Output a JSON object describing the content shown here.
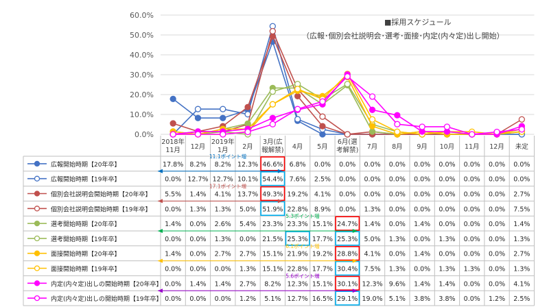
{
  "chart_data": {
    "type": "line",
    "legend": [
      "■採用スケジュール",
      "（広報･個別会社説明会･選考･面接･内定(内々定)出し開始）"
    ],
    "categories": [
      [
        "2018年",
        "11月"
      ],
      [
        "12月"
      ],
      [
        "2019年",
        "1月"
      ],
      [
        "2月"
      ],
      [
        "3月(広",
        "報解禁)"
      ],
      [
        "4月"
      ],
      [
        "5月"
      ],
      [
        "6月(選",
        "考解禁)"
      ],
      [
        "7月"
      ],
      [
        "8月"
      ],
      [
        "9月"
      ],
      [
        "10月"
      ],
      [
        "11月"
      ],
      [
        "12月"
      ],
      [
        "未定"
      ]
    ],
    "ylim": [
      0,
      60
    ],
    "yticks": [
      "0.0%",
      "10.0%",
      "20.0%",
      "30.0%",
      "40.0%",
      "50.0%",
      "60.0%"
    ],
    "series": [
      {
        "name": "広報開始時期【20年卒】",
        "color": "#4472C4",
        "filled": true,
        "values": [
          17.8,
          8.2,
          8.2,
          12.3,
          46.6,
          6.8,
          0.0,
          0.0,
          0.0,
          0.0,
          0.0,
          0.0,
          0.0,
          0.0,
          0.0
        ],
        "labels": [
          "17.8%",
          "8.2%",
          "8.2%",
          "12.3%",
          "46.6%",
          "6.8%",
          "0.0%",
          "0.0%",
          "0.0%",
          "0.0%",
          "0.0%",
          "0.0%",
          "0.0%",
          "0.0%",
          "0.0%"
        ]
      },
      {
        "name": "広報開始時期【19年卒】",
        "color": "#4472C4",
        "filled": false,
        "values": [
          0.0,
          12.7,
          12.7,
          10.1,
          54.4,
          7.6,
          2.5,
          0.0,
          0.0,
          0.0,
          0.0,
          0.0,
          0.0,
          0.0,
          0.0
        ],
        "labels": [
          "0.0%",
          "12.7%",
          "12.7%",
          "10.1%",
          "54.4%",
          "7.6%",
          "2.5%",
          "0.0%",
          "0.0%",
          "0.0%",
          "0.0%",
          "0.0%",
          "0.0%",
          "0.0%",
          "0.0%"
        ]
      },
      {
        "name": "個別会社説明会開始時期【20年卒】",
        "color": "#C0504D",
        "filled": true,
        "values": [
          5.5,
          1.4,
          4.1,
          13.7,
          49.3,
          19.2,
          4.1,
          0.0,
          0.0,
          0.0,
          0.0,
          0.0,
          0.0,
          0.0,
          2.7
        ],
        "labels": [
          "5.5%",
          "1.4%",
          "4.1%",
          "13.7%",
          "49.3%",
          "19.2%",
          "4.1%",
          "0.0%",
          "0.0%",
          "0.0%",
          "0.0%",
          "0.0%",
          "0.0%",
          "0.0%",
          "2.7%"
        ]
      },
      {
        "name": "個別会社説明会開始時期【19年卒】",
        "color": "#C0504D",
        "filled": false,
        "values": [
          0.0,
          1.3,
          1.3,
          5.0,
          51.9,
          22.8,
          8.9,
          0.0,
          1.3,
          0.0,
          0.0,
          0.0,
          0.0,
          0.0,
          7.5
        ],
        "labels": [
          "0.0%",
          "1.3%",
          "1.3%",
          "5.0%",
          "51.9%",
          "22.8%",
          "8.9%",
          "0.0%",
          "1.3%",
          "0.0%",
          "0.0%",
          "0.0%",
          "0.0%",
          "0.0%",
          "7.5%"
        ]
      },
      {
        "name": "選考開始時期【20年卒】",
        "color": "#9BBB59",
        "filled": true,
        "values": [
          1.4,
          0.0,
          2.6,
          5.4,
          23.3,
          23.3,
          15.1,
          24.7,
          1.4,
          0.0,
          1.4,
          0.0,
          0.0,
          0.0,
          1.4
        ],
        "labels": [
          "1.4%",
          "0.0%",
          "2.6%",
          "5.4%",
          "23.3%",
          "23.3%",
          "15.1%",
          "24.7%",
          "1.4%",
          "0.0%",
          "1.4%",
          "0.0%",
          "0.0%",
          "0.0%",
          "1.4%"
        ]
      },
      {
        "name": "選考開始時期【19年卒】",
        "color": "#9BBB59",
        "filled": false,
        "values": [
          0.0,
          0.0,
          1.3,
          0.0,
          21.5,
          25.3,
          17.7,
          25.3,
          5.0,
          1.3,
          0.0,
          1.3,
          0.0,
          0.0,
          1.3
        ],
        "labels": [
          "0.0%",
          "0.0%",
          "1.3%",
          "0.0%",
          "21.5%",
          "25.3%",
          "17.7%",
          "25.3%",
          "5.0%",
          "1.3%",
          "0.0%",
          "1.3%",
          "0.0%",
          "0.0%",
          "1.3%"
        ]
      },
      {
        "name": "面接開始時期【20年卒】",
        "color": "#FFC000",
        "filled": true,
        "values": [
          1.4,
          0.0,
          2.7,
          2.7,
          15.1,
          21.9,
          19.2,
          28.8,
          4.1,
          0.0,
          1.4,
          0.0,
          0.0,
          0.0,
          2.7
        ],
        "labels": [
          "1.4%",
          "0.0%",
          "2.7%",
          "2.7%",
          "15.1%",
          "21.9%",
          "19.2%",
          "28.8%",
          "4.1%",
          "0.0%",
          "1.4%",
          "0.0%",
          "0.0%",
          "0.0%",
          "2.7%"
        ]
      },
      {
        "name": "面接開始時期【19年卒】",
        "color": "#FFC000",
        "filled": false,
        "values": [
          0.0,
          0.0,
          0.0,
          1.3,
          15.1,
          22.8,
          17.7,
          30.4,
          7.5,
          1.3,
          0.0,
          1.3,
          1.3,
          0.0,
          1.3
        ],
        "labels": [
          "0.0%",
          "0.0%",
          "0.0%",
          "1.3%",
          "15.1%",
          "22.8%",
          "17.7%",
          "30.4%",
          "7.5%",
          "1.3%",
          "0.0%",
          "1.3%",
          "1.3%",
          "0.0%",
          "1.3%"
        ]
      },
      {
        "name": "内定(内々定)出しの開始時期【20年卒】",
        "color": "#FF00FF",
        "filled": true,
        "values": [
          0.0,
          1.4,
          1.4,
          2.7,
          8.2,
          12.3,
          15.1,
          30.1,
          12.3,
          9.6,
          1.4,
          1.4,
          0.0,
          0.0,
          4.1
        ],
        "labels": [
          "0.0%",
          "1.4%",
          "1.4%",
          "2.7%",
          "8.2%",
          "12.3%",
          "15.1%",
          "30.1%",
          "12.3%",
          "9.6%",
          "1.4%",
          "1.4%",
          "0.0%",
          "0.0%",
          "4.1%"
        ]
      },
      {
        "name": "内定(内々定)出しの開始時期【19年卒】",
        "color": "#FF00FF",
        "filled": false,
        "values": [
          0.0,
          0.0,
          0.0,
          1.2,
          5.1,
          12.7,
          16.5,
          29.1,
          19.0,
          5.1,
          3.8,
          3.8,
          0.0,
          1.2,
          2.5
        ],
        "labels": [
          "0.0%",
          "0.0%",
          "0.0%",
          "1.2%",
          "5.1%",
          "12.7%",
          "16.5%",
          "29.1%",
          "19.0%",
          "5.1%",
          "3.8%",
          "3.8%",
          "0.0%",
          "1.2%",
          "2.5%"
        ]
      }
    ],
    "annotations": [
      {
        "text": "11.1ポイント増",
        "color": "#0070C0",
        "series": 0
      },
      {
        "text": "17.1ポイント増",
        "color": "#C0504D",
        "series": 2
      },
      {
        "text": "5.3ポイント増",
        "color": "#00B050",
        "series": 4
      },
      {
        "text": "6.1ポイント増",
        "color": "#FFC000",
        "series": 6
      },
      {
        "text": "5.6ポイント増",
        "color": "#9900CC",
        "series": 8
      }
    ],
    "highlights": [
      {
        "series": 0,
        "col": 4,
        "color": "#FF0000"
      },
      {
        "series": 1,
        "col": 4,
        "color": "#00B0F0"
      },
      {
        "series": 2,
        "col": 4,
        "color": "#FF0000"
      },
      {
        "series": 3,
        "col": 4,
        "color": "#00B0F0"
      },
      {
        "series": 4,
        "col": 7,
        "color": "#FF0000"
      },
      {
        "series": 5,
        "col": 5,
        "color": "#00B0F0"
      },
      {
        "series": 5,
        "col": 7,
        "color": "#00B0F0"
      },
      {
        "series": 6,
        "col": 7,
        "color": "#FF0000"
      },
      {
        "series": 7,
        "col": 7,
        "color": "#00B0F0"
      },
      {
        "series": 8,
        "col": 7,
        "color": "#FF0000"
      },
      {
        "series": 9,
        "col": 7,
        "color": "#00B0F0"
      }
    ]
  }
}
